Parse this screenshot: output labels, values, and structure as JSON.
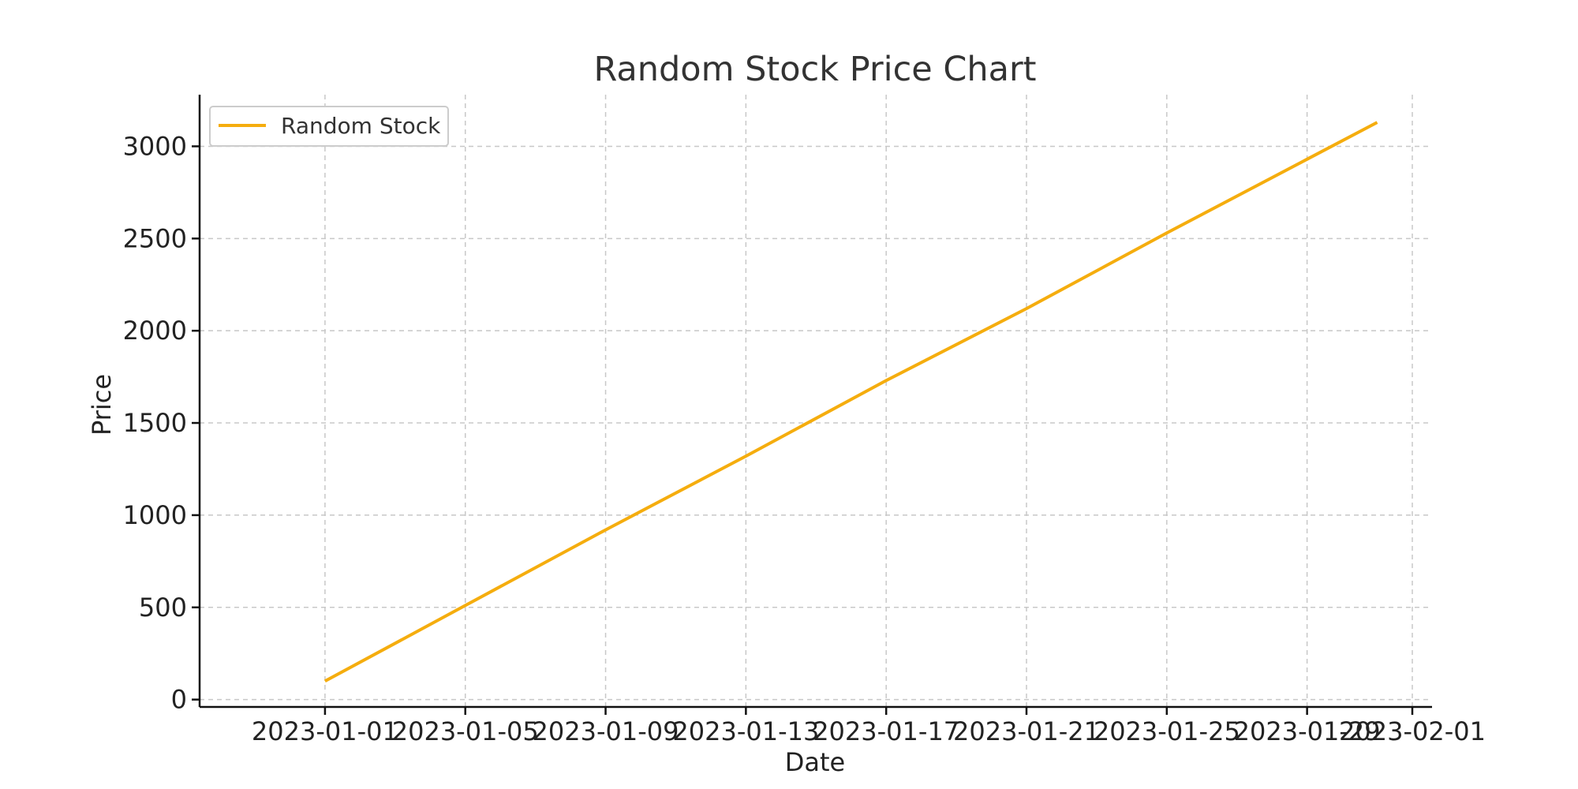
{
  "chart_data": {
    "type": "line",
    "title": "Random Stock Price Chart",
    "xlabel": "Date",
    "ylabel": "Price",
    "x_tick_labels": [
      "2023-01-01",
      "2023-01-05",
      "2023-01-09",
      "2023-01-13",
      "2023-01-17",
      "2023-01-21",
      "2023-01-25",
      "2023-01-29",
      "2023-02-01"
    ],
    "y_tick_labels": [
      "0",
      "500",
      "1000",
      "1500",
      "2000",
      "2500",
      "3000"
    ],
    "y_ticks": [
      0,
      500,
      1000,
      1500,
      2000,
      2500,
      3000
    ],
    "xlim": [
      "2022-12-30",
      "2023-02-01"
    ],
    "ylim": [
      -40,
      3280
    ],
    "grid": true,
    "legend_position": "top-left",
    "series": [
      {
        "name": "Random Stock",
        "color": "#f5ad0e",
        "x": [
          "2023-01-01",
          "2023-01-05",
          "2023-01-09",
          "2023-01-13",
          "2023-01-17",
          "2023-01-21",
          "2023-01-25",
          "2023-01-29",
          "2023-01-31"
        ],
        "y": [
          100,
          510,
          920,
          1320,
          1730,
          2120,
          2530,
          2930,
          3130
        ]
      }
    ]
  }
}
